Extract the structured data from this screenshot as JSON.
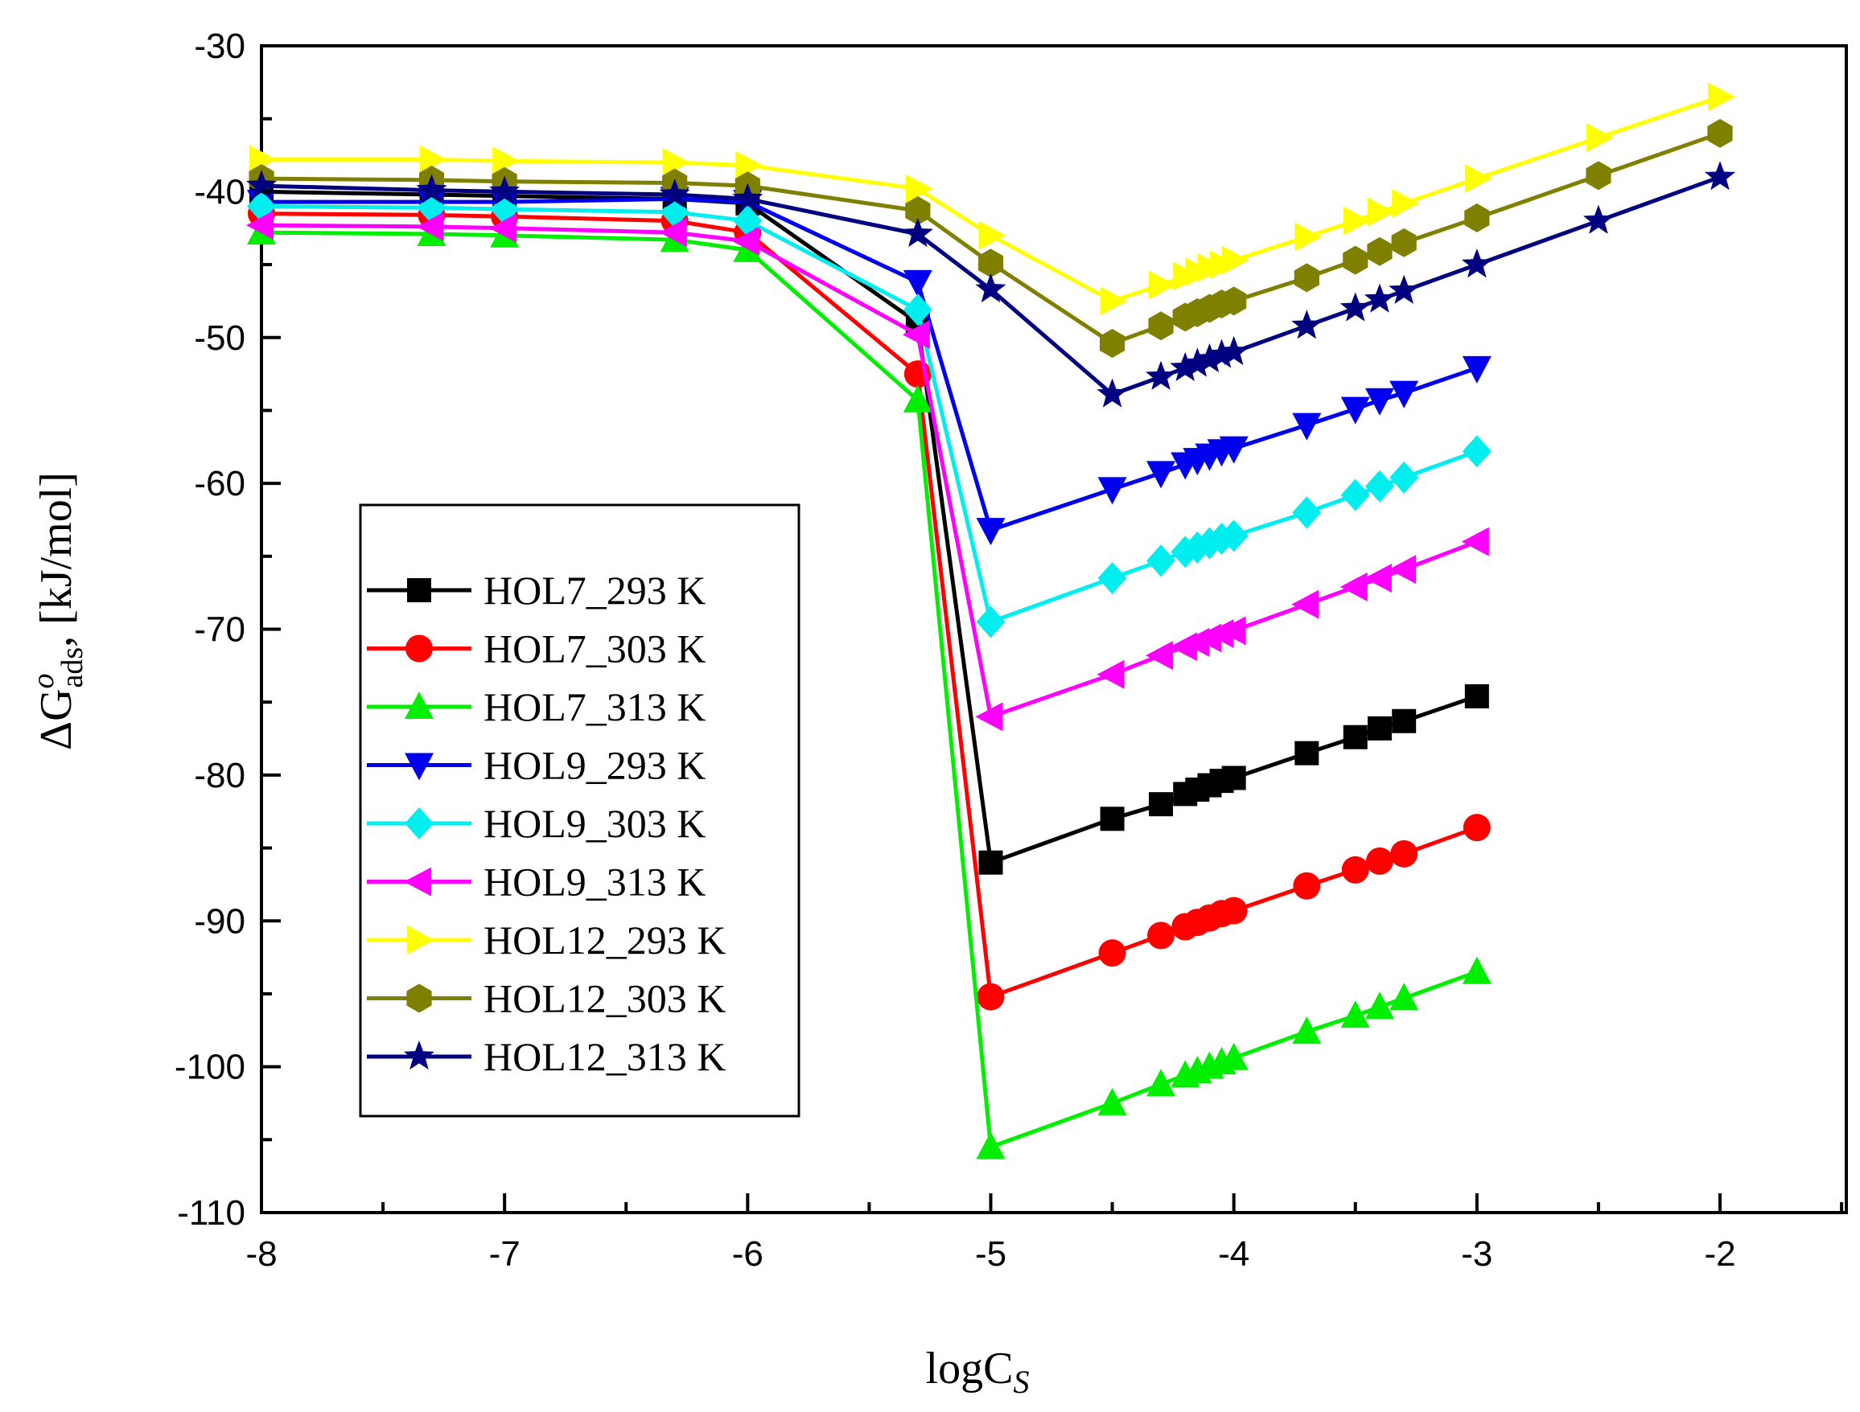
{
  "chart_data": {
    "type": "line",
    "title": "",
    "xlabel": "logC",
    "xlabel_sub": "S",
    "ylabel": "ΔG",
    "ylabel_sup": "o",
    "ylabel_sub": "ads",
    "ylabel_suffix": ", [kJ/mol]",
    "xlim": [
      -8,
      -1.5
    ],
    "ylim": [
      -110,
      -30
    ],
    "xticks": [
      -8,
      -7,
      -6,
      -5,
      -4,
      -3,
      -2
    ],
    "yticks": [
      -30,
      -40,
      -50,
      -60,
      -70,
      -80,
      -90,
      -100,
      -110
    ],
    "xtick_labels": [
      "-8",
      "-7",
      "-6",
      "-5",
      "-4",
      "-3",
      "-2"
    ],
    "ytick_labels": [
      "-30",
      "-40",
      "-50",
      "-60",
      "-70",
      "-80",
      "-90",
      "-100",
      "-110"
    ],
    "grid": false,
    "legend_position": "left-middle",
    "series": [
      {
        "name": "HOL7_293 K",
        "color": "#000000",
        "marker": "square",
        "x": [
          -8,
          -7.3,
          -7,
          -6.3,
          -6,
          -5.3,
          -5,
          -4.5,
          -4.3,
          -4.2,
          -4.15,
          -4.1,
          -4.05,
          -4,
          -3.7,
          -3.5,
          -3.4,
          -3.3,
          -3
        ],
        "y": [
          -40,
          -40.2,
          -40.3,
          -40.5,
          -40.8,
          -49,
          -86,
          -83,
          -82,
          -81.3,
          -81,
          -80.7,
          -80.4,
          -80.2,
          -78.5,
          -77.4,
          -76.8,
          -76.3,
          -74.6
        ]
      },
      {
        "name": "HOL7_303 K",
        "color": "#ff0000",
        "marker": "circle",
        "x": [
          -8,
          -7.3,
          -7,
          -6.3,
          -6,
          -5.3,
          -5,
          -4.5,
          -4.3,
          -4.2,
          -4.15,
          -4.1,
          -4.05,
          -4,
          -3.7,
          -3.5,
          -3.4,
          -3.3,
          -3
        ],
        "y": [
          -41.5,
          -41.6,
          -41.7,
          -42,
          -42.8,
          -52.5,
          -95.2,
          -92.2,
          -91,
          -90.4,
          -90.1,
          -89.8,
          -89.5,
          -89.3,
          -87.6,
          -86.5,
          -85.9,
          -85.4,
          -83.6
        ]
      },
      {
        "name": "HOL7_313 K",
        "color": "#00ee00",
        "marker": "triangle-up",
        "x": [
          -8,
          -7.3,
          -7,
          -6.3,
          -6,
          -5.3,
          -5,
          -4.5,
          -4.3,
          -4.2,
          -4.15,
          -4.1,
          -4.05,
          -4,
          -3.7,
          -3.5,
          -3.4,
          -3.3,
          -3
        ],
        "y": [
          -42.8,
          -42.9,
          -43,
          -43.3,
          -44,
          -54.3,
          -105.5,
          -102.5,
          -101.2,
          -100.6,
          -100.3,
          -100,
          -99.7,
          -99.4,
          -97.6,
          -96.5,
          -95.9,
          -95.3,
          -93.5
        ]
      },
      {
        "name": "HOL9_293 K",
        "color": "#0000ee",
        "marker": "triangle-down",
        "x": [
          -8,
          -7.3,
          -7,
          -6.3,
          -6,
          -5.3,
          -5,
          -4.5,
          -4.3,
          -4.2,
          -4.15,
          -4.1,
          -4.05,
          -4,
          -3.7,
          -3.5,
          -3.4,
          -3.3,
          -3
        ],
        "y": [
          -40.7,
          -40.7,
          -40.7,
          -40.5,
          -40.7,
          -46.2,
          -63.2,
          -60.4,
          -59.3,
          -58.7,
          -58.4,
          -58.1,
          -57.8,
          -57.6,
          -56,
          -54.9,
          -54.3,
          -53.8,
          -52.1
        ]
      },
      {
        "name": "HOL9_303 K",
        "color": "#00eeee",
        "marker": "diamond",
        "x": [
          -8,
          -7.3,
          -7,
          -6.3,
          -6,
          -5.3,
          -5,
          -4.5,
          -4.3,
          -4.2,
          -4.15,
          -4.1,
          -4.05,
          -4,
          -3.7,
          -3.5,
          -3.4,
          -3.3,
          -3
        ],
        "y": [
          -41,
          -41.1,
          -41.2,
          -41.4,
          -42,
          -48.1,
          -69.5,
          -66.5,
          -65.3,
          -64.7,
          -64.4,
          -64.1,
          -63.8,
          -63.6,
          -62,
          -60.8,
          -60.2,
          -59.6,
          -57.8
        ]
      },
      {
        "name": "HOL9_313 K",
        "color": "#ff00ff",
        "marker": "triangle-left",
        "x": [
          -8,
          -7.3,
          -7,
          -6.3,
          -6,
          -5.3,
          -5,
          -4.5,
          -4.3,
          -4.2,
          -4.15,
          -4.1,
          -4.05,
          -4,
          -3.7,
          -3.5,
          -3.4,
          -3.3,
          -3
        ],
        "y": [
          -42.3,
          -42.4,
          -42.5,
          -42.8,
          -43.4,
          -49.8,
          -76,
          -73.1,
          -71.8,
          -71.2,
          -70.9,
          -70.6,
          -70.3,
          -70.1,
          -68.3,
          -67.1,
          -66.5,
          -65.9,
          -64
        ]
      },
      {
        "name": "HOL12_293 K",
        "color": "#ffff00",
        "marker": "triangle-right",
        "x": [
          -8,
          -7.3,
          -7,
          -6.3,
          -6,
          -5.3,
          -5,
          -4.5,
          -4.3,
          -4.2,
          -4.15,
          -4.1,
          -4.05,
          -4,
          -3.7,
          -3.5,
          -3.4,
          -3.3,
          -3,
          -2.5,
          -2
        ],
        "y": [
          -37.8,
          -37.8,
          -37.9,
          -38,
          -38.2,
          -39.8,
          -43,
          -47.5,
          -46.4,
          -45.8,
          -45.5,
          -45.2,
          -45,
          -44.7,
          -43.1,
          -42,
          -41.4,
          -40.8,
          -39.1,
          -36.3,
          -33.5
        ]
      },
      {
        "name": "HOL12_303 K",
        "color": "#808000",
        "marker": "hexagon",
        "x": [
          -8,
          -7.3,
          -7,
          -6.3,
          -6,
          -5.3,
          -5,
          -4.5,
          -4.3,
          -4.2,
          -4.15,
          -4.1,
          -4.05,
          -4,
          -3.7,
          -3.5,
          -3.4,
          -3.3,
          -3,
          -2.5,
          -2
        ],
        "y": [
          -39.1,
          -39.2,
          -39.3,
          -39.4,
          -39.6,
          -41.3,
          -44.9,
          -50.4,
          -49.2,
          -48.6,
          -48.3,
          -48,
          -47.7,
          -47.5,
          -45.9,
          -44.7,
          -44.1,
          -43.5,
          -41.8,
          -38.9,
          -36
        ]
      },
      {
        "name": "HOL12_313 K",
        "color": "#000080",
        "marker": "star",
        "x": [
          -8,
          -7.3,
          -7,
          -6.3,
          -6,
          -5.3,
          -5,
          -4.5,
          -4.3,
          -4.2,
          -4.15,
          -4.1,
          -4.05,
          -4,
          -3.7,
          -3.5,
          -3.4,
          -3.3,
          -3,
          -2.5,
          -2
        ],
        "y": [
          -39.6,
          -39.9,
          -40,
          -40.2,
          -40.5,
          -42.9,
          -46.7,
          -53.9,
          -52.7,
          -52.1,
          -51.8,
          -51.5,
          -51.2,
          -51,
          -49.2,
          -48,
          -47.4,
          -46.8,
          -45,
          -42,
          -39
        ]
      }
    ]
  }
}
